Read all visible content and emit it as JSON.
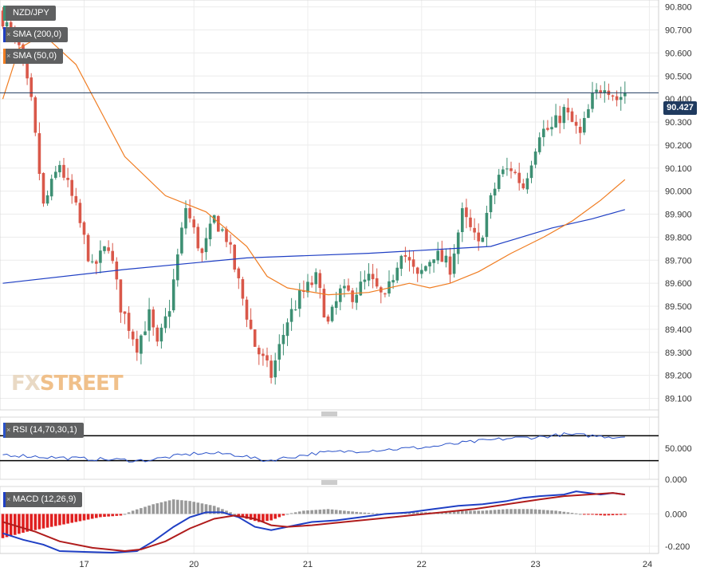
{
  "labels": {
    "pair": "NZD/JPY",
    "sma200": "SMA (200,0)",
    "sma50": "SMA (50,0)",
    "rsi": "RSI (14,70,30,1)",
    "macd": "MACD (12,26,9)",
    "watermark_a": "FX",
    "watermark_b": "STREET",
    "last_price": "90.427"
  },
  "colors": {
    "bull": "#3d8f73",
    "bear": "#d9584a",
    "sma200": "#1f3fc4",
    "sma50": "#f07d22",
    "rsi": "#2a52c9",
    "macd": "#1f3fc4",
    "signal": "#b01c1c",
    "hist_pos": "#999999",
    "hist_neg": "#e02020",
    "price_line": "#1f3a5f"
  },
  "chart_data": [
    {
      "type": "candlestick",
      "x_ticks": [
        "17",
        "20",
        "21",
        "22",
        "23",
        "24"
      ],
      "y_ticks": [
        "90.800",
        "90.700",
        "90.600",
        "90.500",
        "90.400",
        "90.300",
        "90.200",
        "90.100",
        "90.000",
        "89.900",
        "89.800",
        "89.700",
        "89.600",
        "89.500",
        "89.400",
        "89.300",
        "89.200",
        "89.100"
      ],
      "ylim": [
        89.05,
        90.83
      ],
      "last_price": 90.427,
      "close_path": [
        [
          0,
          90.75
        ],
        [
          4,
          90.62
        ],
        [
          7,
          90.38
        ],
        [
          10,
          89.93
        ],
        [
          14,
          90.12
        ],
        [
          18,
          89.92
        ],
        [
          22,
          89.66
        ],
        [
          26,
          89.77
        ],
        [
          29,
          89.5
        ],
        [
          33,
          89.33
        ],
        [
          36,
          89.46
        ],
        [
          38,
          89.32
        ],
        [
          41,
          89.5
        ],
        [
          45,
          89.93
        ],
        [
          49,
          89.72
        ],
        [
          52,
          89.88
        ],
        [
          55,
          89.8
        ],
        [
          58,
          89.6
        ],
        [
          62,
          89.33
        ],
        [
          66,
          89.2
        ],
        [
          70,
          89.44
        ],
        [
          73,
          89.54
        ],
        [
          77,
          89.62
        ],
        [
          80,
          89.42
        ],
        [
          83,
          89.56
        ],
        [
          86,
          89.55
        ],
        [
          90,
          89.62
        ],
        [
          94,
          89.52
        ],
        [
          98,
          89.75
        ],
        [
          102,
          89.62
        ],
        [
          106,
          89.73
        ],
        [
          110,
          89.67
        ],
        [
          113,
          89.9
        ],
        [
          117,
          89.76
        ],
        [
          119,
          89.9
        ],
        [
          122,
          90.07
        ],
        [
          125,
          90.1
        ],
        [
          128,
          90.02
        ],
        [
          132,
          90.26
        ],
        [
          135,
          90.27
        ],
        [
          138,
          90.35
        ],
        [
          142,
          90.24
        ],
        [
          145,
          90.4
        ],
        [
          148,
          90.47
        ],
        [
          151,
          90.4
        ],
        [
          153,
          90.427
        ]
      ],
      "candle_count": 154
    },
    {
      "type": "line",
      "name": "SMA (200,0)",
      "points": [
        [
          0,
          89.6
        ],
        [
          30,
          89.66
        ],
        [
          60,
          89.71
        ],
        [
          90,
          89.73
        ],
        [
          110,
          89.75
        ],
        [
          120,
          89.76
        ],
        [
          135,
          89.84
        ],
        [
          145,
          89.88
        ],
        [
          153,
          89.92
        ]
      ]
    },
    {
      "type": "line",
      "name": "SMA (50,0)",
      "points": [
        [
          0,
          90.4
        ],
        [
          4,
          90.62
        ],
        [
          10,
          90.68
        ],
        [
          18,
          90.55
        ],
        [
          30,
          90.15
        ],
        [
          40,
          89.98
        ],
        [
          50,
          89.91
        ],
        [
          60,
          89.76
        ],
        [
          65,
          89.63
        ],
        [
          70,
          89.58
        ],
        [
          80,
          89.55
        ],
        [
          90,
          89.56
        ],
        [
          100,
          89.6
        ],
        [
          105,
          89.58
        ],
        [
          110,
          89.6
        ],
        [
          117,
          89.65
        ],
        [
          125,
          89.73
        ],
        [
          133,
          89.8
        ],
        [
          140,
          89.87
        ],
        [
          147,
          89.96
        ],
        [
          153,
          90.05
        ]
      ]
    },
    {
      "type": "line",
      "name": "RSI (14,70,30,1)",
      "y_ticks": [
        "50.000",
        "0.000"
      ],
      "ylim": [
        0,
        100
      ],
      "levels": [
        70,
        30
      ],
      "points": [
        [
          0,
          40
        ],
        [
          10,
          36
        ],
        [
          20,
          33
        ],
        [
          30,
          31
        ],
        [
          33,
          30
        ],
        [
          36,
          31
        ],
        [
          41,
          36
        ],
        [
          48,
          42
        ],
        [
          55,
          41
        ],
        [
          59,
          38
        ],
        [
          62,
          33
        ],
        [
          65,
          30
        ],
        [
          70,
          35
        ],
        [
          77,
          42
        ],
        [
          85,
          45
        ],
        [
          95,
          48
        ],
        [
          105,
          52
        ],
        [
          115,
          60
        ],
        [
          125,
          66
        ],
        [
          132,
          68
        ],
        [
          138,
          72
        ],
        [
          145,
          70
        ],
        [
          151,
          68
        ],
        [
          153,
          69
        ]
      ]
    },
    {
      "type": "bar",
      "name": "MACD (12,26,9)",
      "y_ticks": [
        "0.000",
        "-0.200"
      ],
      "ylim": [
        -0.245,
        0.17
      ],
      "histogram": [
        [
          0,
          -0.15
        ],
        [
          6,
          -0.11
        ],
        [
          12,
          -0.08
        ],
        [
          18,
          -0.05
        ],
        [
          24,
          -0.02
        ],
        [
          29,
          -0.01
        ],
        [
          32,
          0.02
        ],
        [
          37,
          0.06
        ],
        [
          42,
          0.09
        ],
        [
          46,
          0.08
        ],
        [
          52,
          0.05
        ],
        [
          56,
          0.01
        ],
        [
          60,
          -0.03
        ],
        [
          63,
          -0.05
        ],
        [
          66,
          -0.04
        ],
        [
          70,
          0.0
        ],
        [
          74,
          0.02
        ],
        [
          80,
          0.03
        ],
        [
          88,
          0.01
        ],
        [
          94,
          0.0
        ],
        [
          100,
          0.01
        ],
        [
          106,
          0.01
        ],
        [
          112,
          0.02
        ],
        [
          118,
          0.02
        ],
        [
          124,
          0.03
        ],
        [
          130,
          0.03
        ],
        [
          136,
          0.02
        ],
        [
          142,
          0.0
        ],
        [
          148,
          -0.01
        ],
        [
          153,
          -0.005
        ]
      ],
      "macd_line": [
        [
          0,
          -0.12
        ],
        [
          5,
          -0.16
        ],
        [
          10,
          -0.19
        ],
        [
          14,
          -0.23
        ],
        [
          20,
          -0.235
        ],
        [
          27,
          -0.24
        ],
        [
          33,
          -0.23
        ],
        [
          37,
          -0.17
        ],
        [
          42,
          -0.08
        ],
        [
          46,
          -0.02
        ],
        [
          50,
          0.01
        ],
        [
          54,
          0.01
        ],
        [
          58,
          -0.02
        ],
        [
          62,
          -0.08
        ],
        [
          66,
          -0.1
        ],
        [
          70,
          -0.08
        ],
        [
          76,
          -0.05
        ],
        [
          82,
          -0.04
        ],
        [
          88,
          -0.02
        ],
        [
          94,
          0.0
        ],
        [
          100,
          0.01
        ],
        [
          106,
          0.03
        ],
        [
          112,
          0.05
        ],
        [
          118,
          0.06
        ],
        [
          124,
          0.08
        ],
        [
          128,
          0.1
        ],
        [
          132,
          0.11
        ],
        [
          138,
          0.12
        ],
        [
          141,
          0.14
        ],
        [
          144,
          0.13
        ],
        [
          147,
          0.12
        ],
        [
          150,
          0.13
        ],
        [
          153,
          0.12
        ]
      ],
      "signal_line": [
        [
          0,
          -0.05
        ],
        [
          8,
          -0.11
        ],
        [
          14,
          -0.17
        ],
        [
          22,
          -0.21
        ],
        [
          30,
          -0.23
        ],
        [
          34,
          -0.22
        ],
        [
          40,
          -0.17
        ],
        [
          46,
          -0.09
        ],
        [
          52,
          -0.03
        ],
        [
          57,
          -0.01
        ],
        [
          62,
          -0.03
        ],
        [
          66,
          -0.07
        ],
        [
          70,
          -0.08
        ],
        [
          76,
          -0.07
        ],
        [
          84,
          -0.05
        ],
        [
          92,
          -0.03
        ],
        [
          100,
          -0.01
        ],
        [
          108,
          0.01
        ],
        [
          116,
          0.03
        ],
        [
          124,
          0.06
        ],
        [
          132,
          0.09
        ],
        [
          138,
          0.11
        ],
        [
          144,
          0.12
        ],
        [
          150,
          0.13
        ],
        [
          153,
          0.12
        ]
      ]
    }
  ]
}
